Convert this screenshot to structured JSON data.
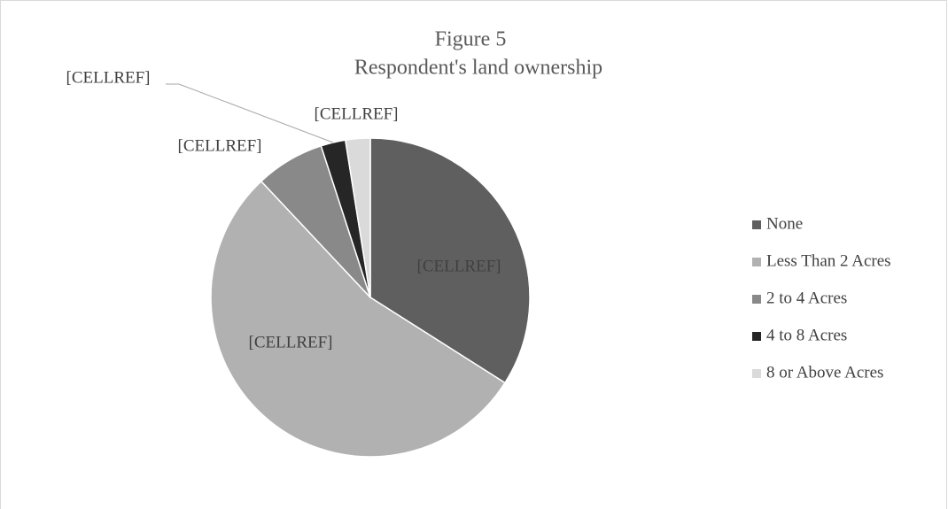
{
  "chart_data": {
    "type": "pie",
    "title": "Figure 5",
    "subtitle": "Respondent's land ownership",
    "categories": [
      "None",
      "Less Than 2 Acres",
      "2 to 4 Acres",
      "4 to 8 Acres",
      "8 or Above Acres"
    ],
    "values": [
      34,
      54,
      7,
      2.5,
      2.5
    ],
    "data_labels": [
      "[CELLREF]",
      "[CELLREF]",
      "[CELLREF]",
      "[CELLREF]",
      "[CELLREF]"
    ],
    "colors": [
      "#5f5f5f",
      "#b1b1b1",
      "#898989",
      "#262626",
      "#dadada"
    ],
    "legend": "right"
  }
}
